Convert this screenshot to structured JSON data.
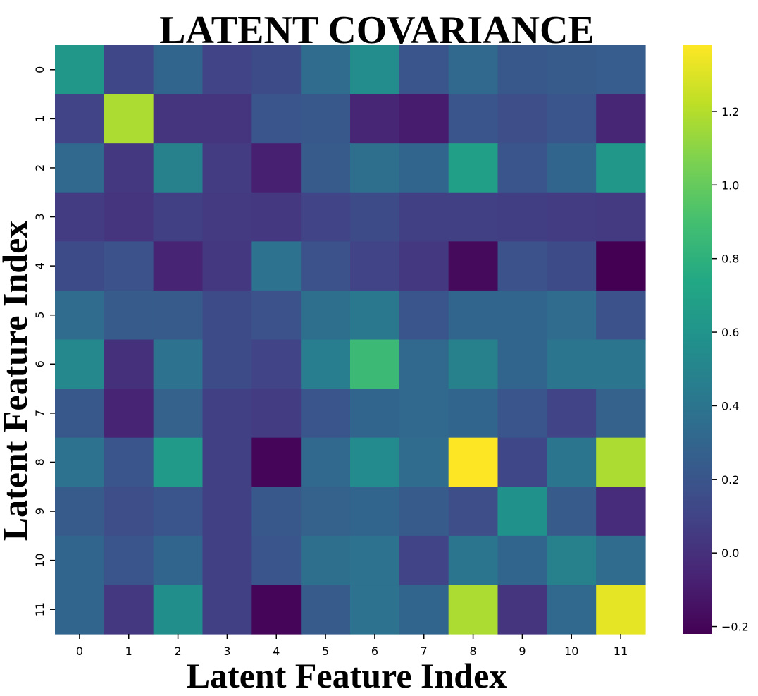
{
  "chart_data": {
    "type": "heatmap",
    "title": "LATENT COVARIANCE",
    "xlabel": "Latent Feature Index",
    "ylabel": "Latent Feature Index",
    "x_categories": [
      "0",
      "1",
      "2",
      "3",
      "4",
      "5",
      "6",
      "7",
      "8",
      "9",
      "10",
      "11"
    ],
    "y_categories": [
      "0",
      "1",
      "2",
      "3",
      "4",
      "5",
      "6",
      "7",
      "8",
      "9",
      "10",
      "11"
    ],
    "colormap": "viridis",
    "colorbar": {
      "vmin": -0.22,
      "vmax": 1.38,
      "ticks": [
        -0.2,
        0.0,
        0.2,
        0.4,
        0.6,
        0.8,
        1.0,
        1.2
      ],
      "tick_labels": [
        "−0.2",
        "0.0",
        "0.2",
        "0.4",
        "0.6",
        "0.8",
        "1.0",
        "1.2"
      ]
    },
    "values": [
      [
        0.62,
        0.12,
        0.3,
        0.1,
        0.14,
        0.34,
        0.55,
        0.2,
        0.32,
        0.22,
        0.24,
        0.25
      ],
      [
        0.1,
        1.18,
        0.02,
        0.02,
        0.2,
        0.22,
        -0.05,
        -0.1,
        0.2,
        0.16,
        0.2,
        -0.05
      ],
      [
        0.32,
        0.04,
        0.48,
        0.06,
        -0.08,
        0.24,
        0.36,
        0.3,
        0.68,
        0.2,
        0.3,
        0.62
      ],
      [
        0.06,
        0.02,
        0.08,
        0.05,
        0.04,
        0.1,
        0.14,
        0.08,
        0.08,
        0.07,
        0.06,
        0.05
      ],
      [
        0.14,
        0.18,
        -0.06,
        0.04,
        0.38,
        0.18,
        0.1,
        0.04,
        -0.18,
        0.18,
        0.15,
        -0.22
      ],
      [
        0.34,
        0.24,
        0.24,
        0.14,
        0.18,
        0.36,
        0.42,
        0.2,
        0.3,
        0.3,
        0.34,
        0.18
      ],
      [
        0.52,
        0.0,
        0.38,
        0.14,
        0.1,
        0.46,
        0.86,
        0.32,
        0.48,
        0.3,
        0.4,
        0.4
      ],
      [
        0.22,
        -0.06,
        0.28,
        0.08,
        0.06,
        0.2,
        0.3,
        0.32,
        0.3,
        0.2,
        0.1,
        0.28
      ],
      [
        0.38,
        0.2,
        0.64,
        0.08,
        -0.2,
        0.32,
        0.54,
        0.34,
        1.38,
        0.12,
        0.4,
        1.18
      ],
      [
        0.24,
        0.16,
        0.2,
        0.08,
        0.22,
        0.28,
        0.3,
        0.24,
        0.16,
        0.58,
        0.24,
        -0.02
      ],
      [
        0.3,
        0.2,
        0.3,
        0.08,
        0.2,
        0.36,
        0.38,
        0.1,
        0.4,
        0.3,
        0.48,
        0.34
      ],
      [
        0.3,
        0.04,
        0.56,
        0.08,
        -0.2,
        0.24,
        0.38,
        0.3,
        1.18,
        0.02,
        0.32,
        1.32
      ]
    ]
  }
}
